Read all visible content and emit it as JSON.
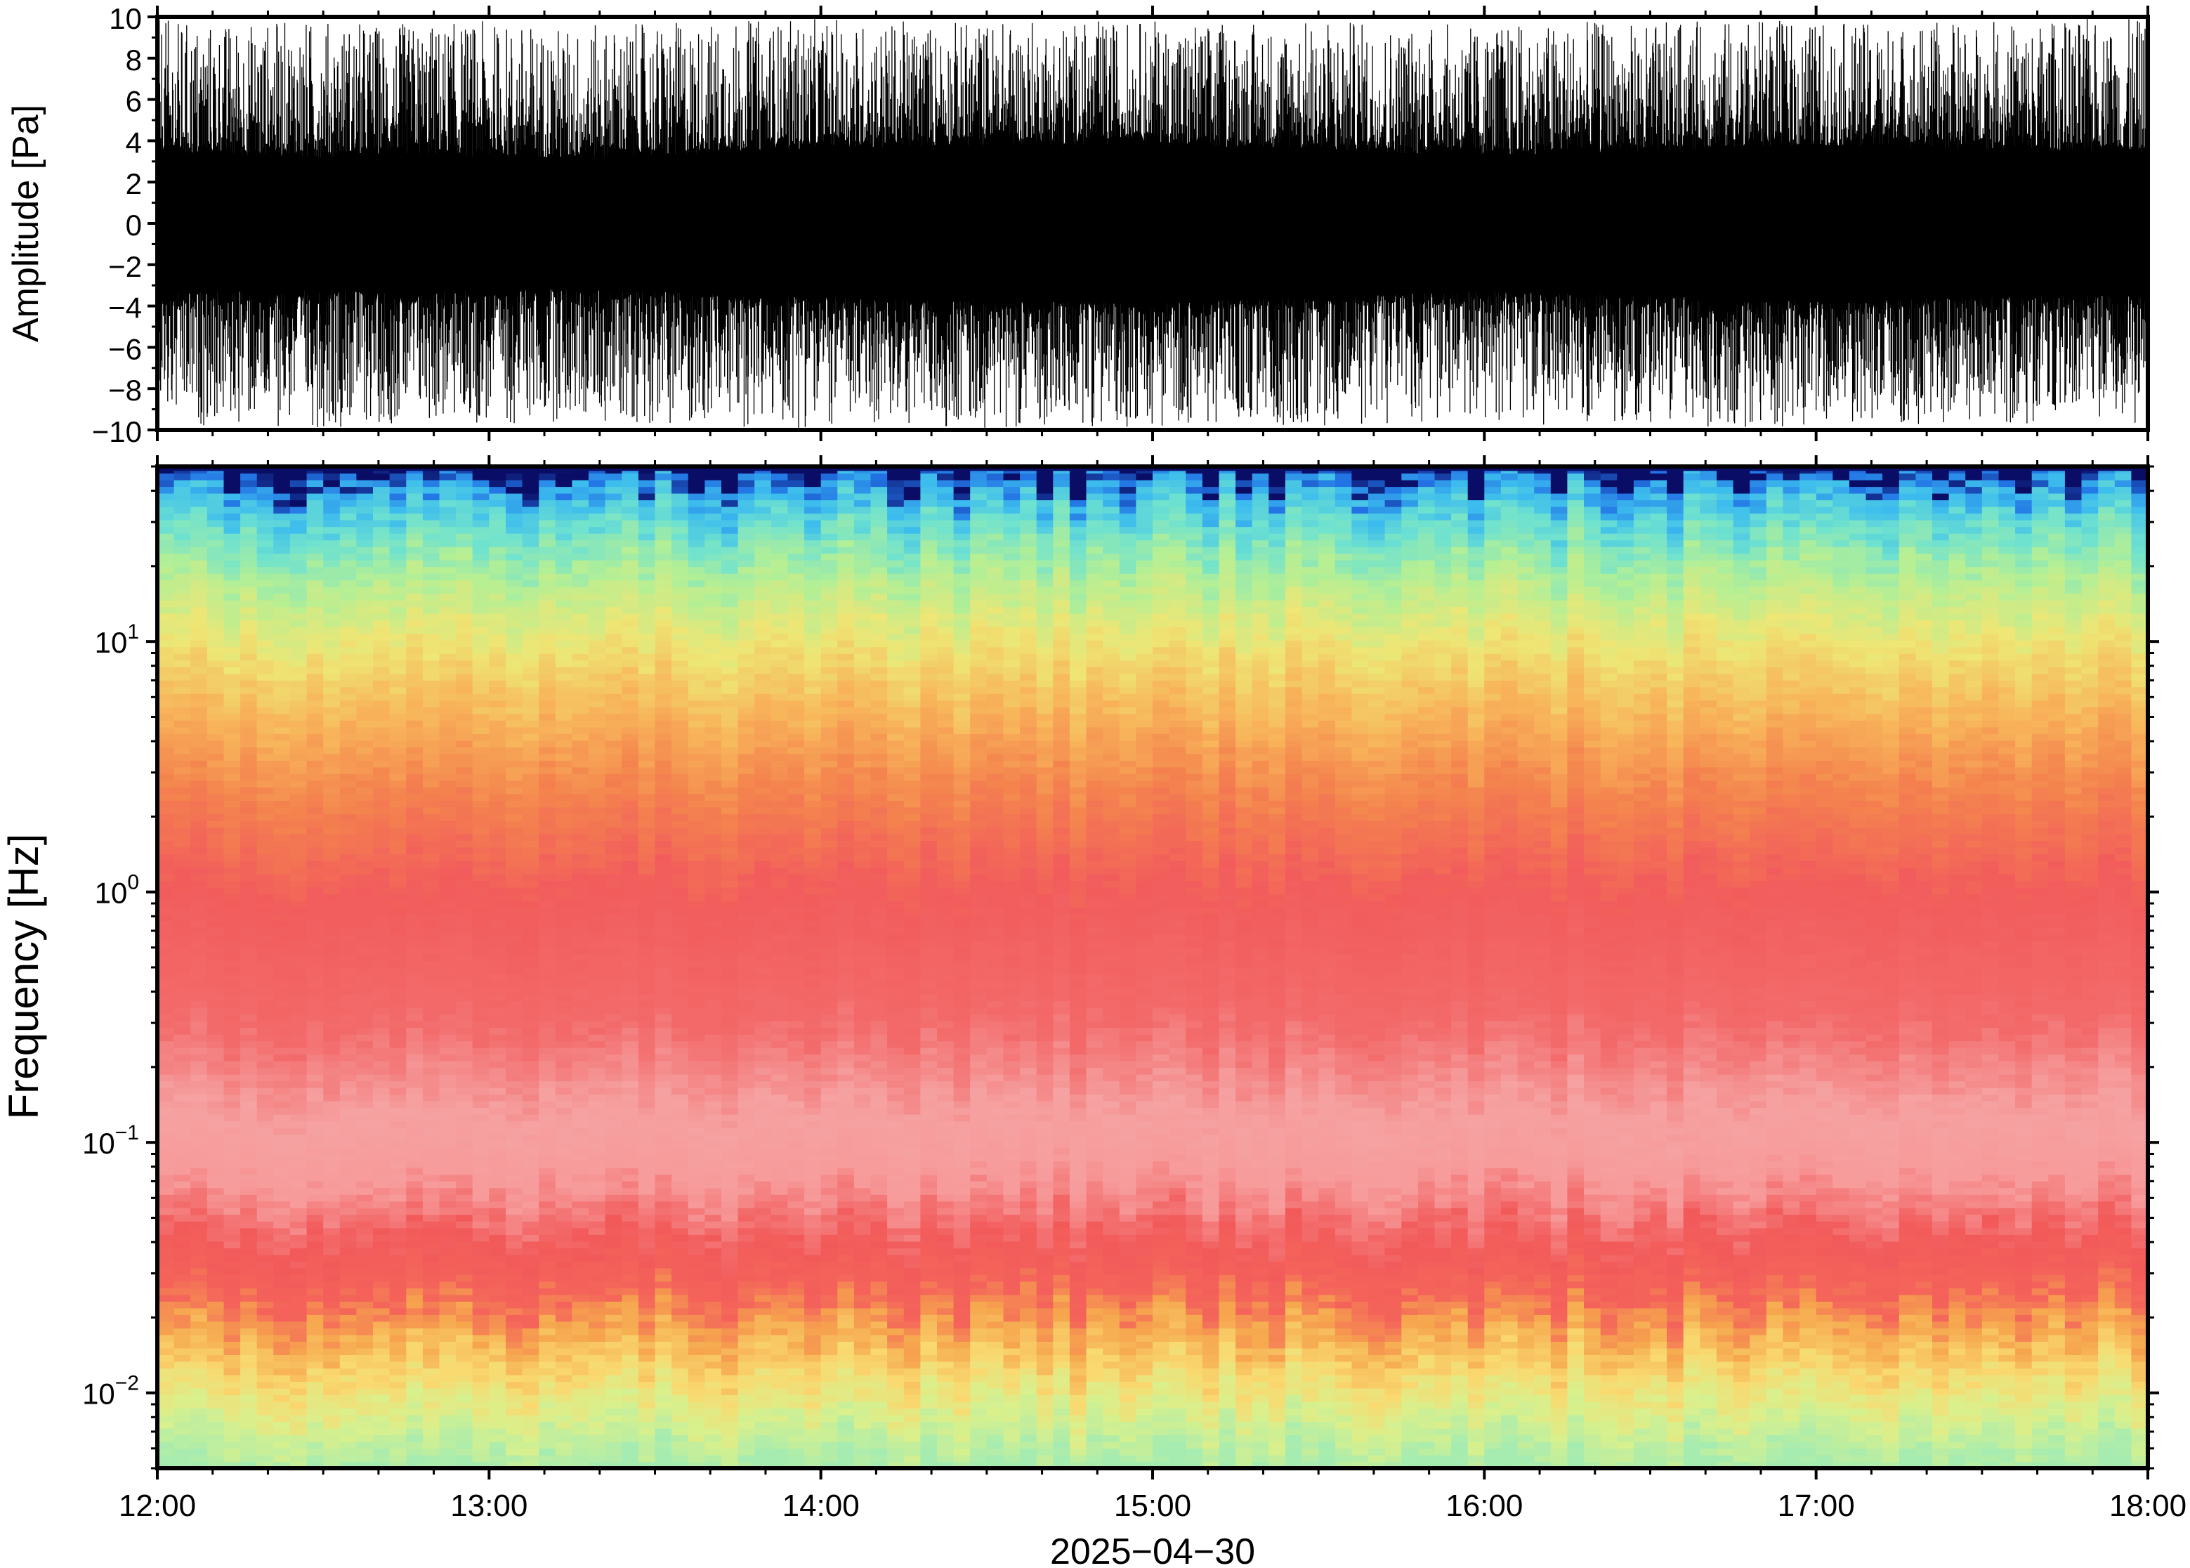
{
  "chart_data": [
    {
      "type": "line",
      "panel": "waveform",
      "ylabel": "Amplitude [Pa]",
      "ylim": [
        -10,
        10
      ],
      "yticks": [
        -10,
        -8,
        -6,
        -4,
        -2,
        0,
        2,
        4,
        6,
        8,
        10
      ],
      "ytick_labels": [
        "−10",
        "−8",
        "−6",
        "−4",
        "−2",
        "0",
        "2",
        "4",
        "6",
        "8",
        "10"
      ],
      "xlim": [
        "12:00",
        "18:00"
      ],
      "series": [
        {
          "color": "#000000",
          "x_hours": [
            12.0,
            12.25,
            12.5,
            12.75,
            13.0,
            13.25,
            13.5,
            13.75,
            14.0,
            14.25,
            14.5,
            14.75,
            15.0,
            15.25,
            15.5,
            15.75,
            16.0,
            16.25,
            16.5,
            16.75,
            17.0,
            17.25,
            17.5,
            17.75,
            18.0
          ],
          "core_amplitude": [
            3.4,
            3.3,
            3.2,
            3.4,
            3.2,
            3.2,
            3.3,
            3.5,
            3.6,
            3.7,
            3.8,
            3.8,
            3.8,
            3.7,
            3.6,
            3.4,
            3.3,
            3.4,
            3.5,
            3.7,
            3.8,
            3.7,
            3.6,
            3.5,
            3.4
          ],
          "peak_amplitude": [
            9.9,
            9.8,
            9.9,
            9.7,
            9.8,
            9.6,
            9.7,
            9.9,
            9.9,
            9.8,
            9.9,
            9.8,
            9.9,
            9.7,
            9.9,
            9.8,
            9.6,
            9.8,
            9.7,
            9.9,
            9.8,
            9.7,
            9.8,
            9.9,
            9.9
          ]
        }
      ],
      "grid": false
    },
    {
      "type": "heatmap",
      "panel": "spectrogram",
      "ylabel": "Frequency [Hz]",
      "xlabel": "2025−04−30",
      "yscale": "log",
      "ylim": [
        0.005,
        50
      ],
      "yticks": [
        0.01,
        0.1,
        1,
        10
      ],
      "ytick_labels": [
        {
          "base": "10",
          "exp": "−2"
        },
        {
          "base": "10",
          "exp": "−1"
        },
        {
          "base": "10",
          "exp": "0"
        },
        {
          "base": "10",
          "exp": "1"
        }
      ],
      "xlim": [
        "12:00",
        "18:00"
      ],
      "xticks": [
        "12:00",
        "13:00",
        "14:00",
        "15:00",
        "16:00",
        "17:00",
        "18:00"
      ],
      "colormap": "jet-like (blue low, red high)",
      "frequency_profile": [
        {
          "freq": 0.005,
          "color": "#a6ecb0"
        },
        {
          "freq": 0.008,
          "color": "#d9f08c"
        },
        {
          "freq": 0.012,
          "color": "#f9d970"
        },
        {
          "freq": 0.018,
          "color": "#f6a64e"
        },
        {
          "freq": 0.025,
          "color": "#f4645a"
        },
        {
          "freq": 0.04,
          "color": "#f25a5a"
        },
        {
          "freq": 0.07,
          "color": "#f79a9a"
        },
        {
          "freq": 0.13,
          "color": "#f6a2a2"
        },
        {
          "freq": 0.3,
          "color": "#f36a6a"
        },
        {
          "freq": 1.0,
          "color": "#f25c5c"
        },
        {
          "freq": 2.5,
          "color": "#f4844e"
        },
        {
          "freq": 5.0,
          "color": "#f8b45a"
        },
        {
          "freq": 10.0,
          "color": "#eee675"
        },
        {
          "freq": 18.0,
          "color": "#b4ef95"
        },
        {
          "freq": 28.0,
          "color": "#6fe2cf"
        },
        {
          "freq": 38.0,
          "color": "#3cbcee"
        },
        {
          "freq": 44.0,
          "color": "#2273e4"
        },
        {
          "freq": 48.0,
          "color": "#0a0d66"
        }
      ],
      "grid": false
    }
  ]
}
